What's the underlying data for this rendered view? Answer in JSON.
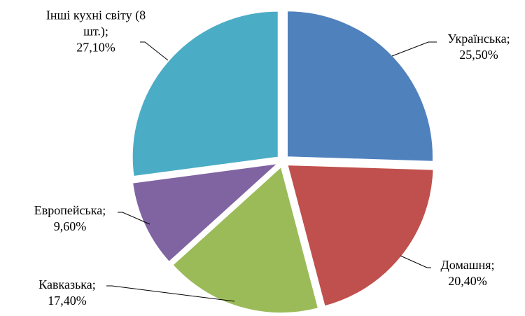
{
  "chart_data": {
    "type": "pie",
    "categories": [
      "Українська;",
      "Домашня;",
      "Кавказька;",
      "Европейська;",
      "Інші кухні світу (8 шт.);"
    ],
    "values": [
      25.5,
      20.4,
      17.4,
      9.6,
      27.1
    ],
    "value_labels": [
      "25,50%",
      "20,40%",
      "17,40%",
      "9,60%",
      "27,10%"
    ],
    "colors": [
      "#4f81bd",
      "#c0504d",
      "#9bbb59",
      "#8064a2",
      "#4bacc6"
    ]
  }
}
